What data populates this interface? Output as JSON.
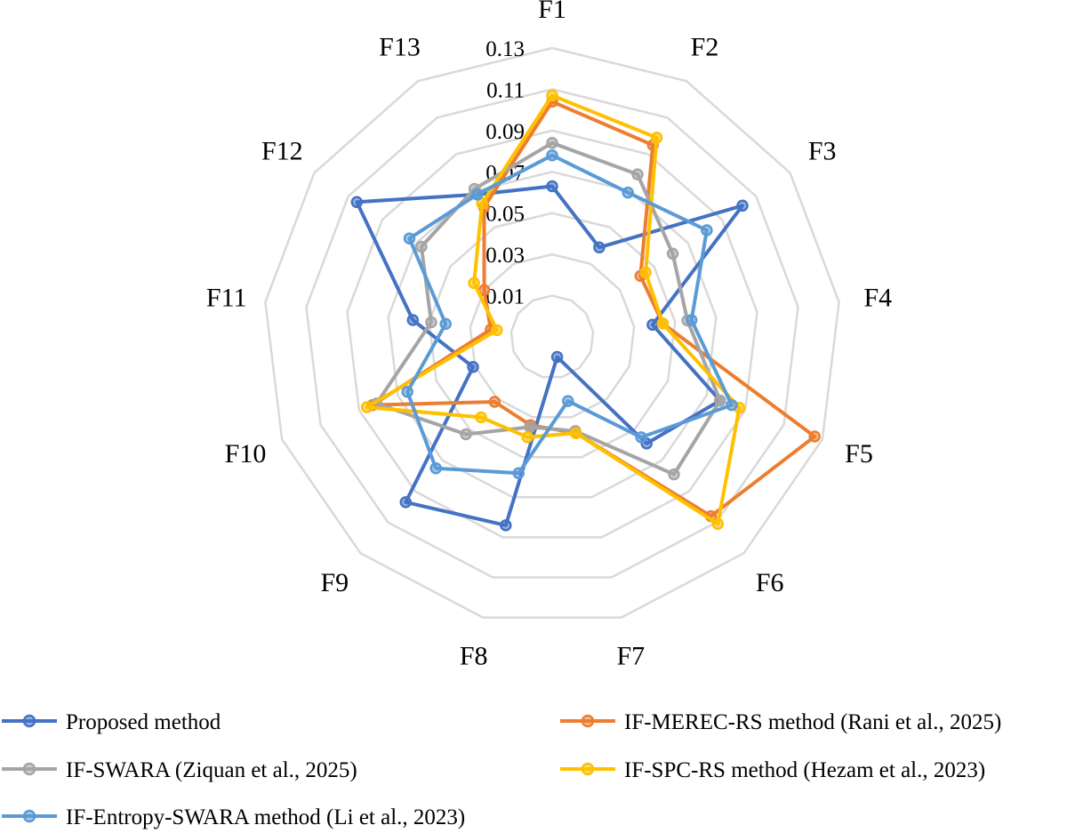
{
  "chart_data": {
    "type": "radar",
    "categories": [
      "F1",
      "F2",
      "F3",
      "F4",
      "F5",
      "F6",
      "F7",
      "F8",
      "F9",
      "F10",
      "F11",
      "F12",
      "F13"
    ],
    "ticks": [
      0.01,
      0.03,
      0.05,
      0.07,
      0.09,
      0.11,
      0.13
    ],
    "tick_labels": [
      "0.01",
      "0.03",
      "0.05",
      "0.07",
      "0.09",
      "0.11",
      "0.13"
    ],
    "range": [
      -0.01,
      0.13
    ],
    "grid": true,
    "legend_position": "bottom",
    "series": [
      {
        "name": "Proposed method",
        "color": "#4472C4",
        "values": [
          0.063,
          0.039,
          0.102,
          0.039,
          0.077,
          0.059,
          0.0,
          0.084,
          0.097,
          0.031,
          0.058,
          0.105,
          0.068
        ]
      },
      {
        "name": "IF-MEREC-RS method (Rani et al., 2025)",
        "color": "#ED7D31",
        "values": [
          0.104,
          0.095,
          0.042,
          0.044,
          0.126,
          0.106,
          0.038,
          0.034,
          0.032,
          0.083,
          0.02,
          0.03,
          0.061
        ]
      },
      {
        "name": "IF-SWARA (Ziquan et al., 2025)",
        "color": "#A5A5A5",
        "values": [
          0.084,
          0.079,
          0.061,
          0.056,
          0.077,
          0.079,
          0.037,
          0.035,
          0.053,
          0.081,
          0.049,
          0.067,
          0.071
        ]
      },
      {
        "name": "IF-SPC-RS method (Hezam et al., 2023)",
        "color": "#FFC000",
        "values": [
          0.107,
          0.099,
          0.045,
          0.044,
          0.087,
          0.111,
          0.038,
          0.04,
          0.042,
          0.086,
          0.017,
          0.036,
          0.063
        ]
      },
      {
        "name": "IF-Entropy-SWARA method (Li et al., 2023)",
        "color": "#5B9BD5",
        "values": [
          0.078,
          0.069,
          0.081,
          0.058,
          0.083,
          0.055,
          0.022,
          0.058,
          0.075,
          0.065,
          0.042,
          0.074,
          0.068
        ]
      }
    ]
  }
}
